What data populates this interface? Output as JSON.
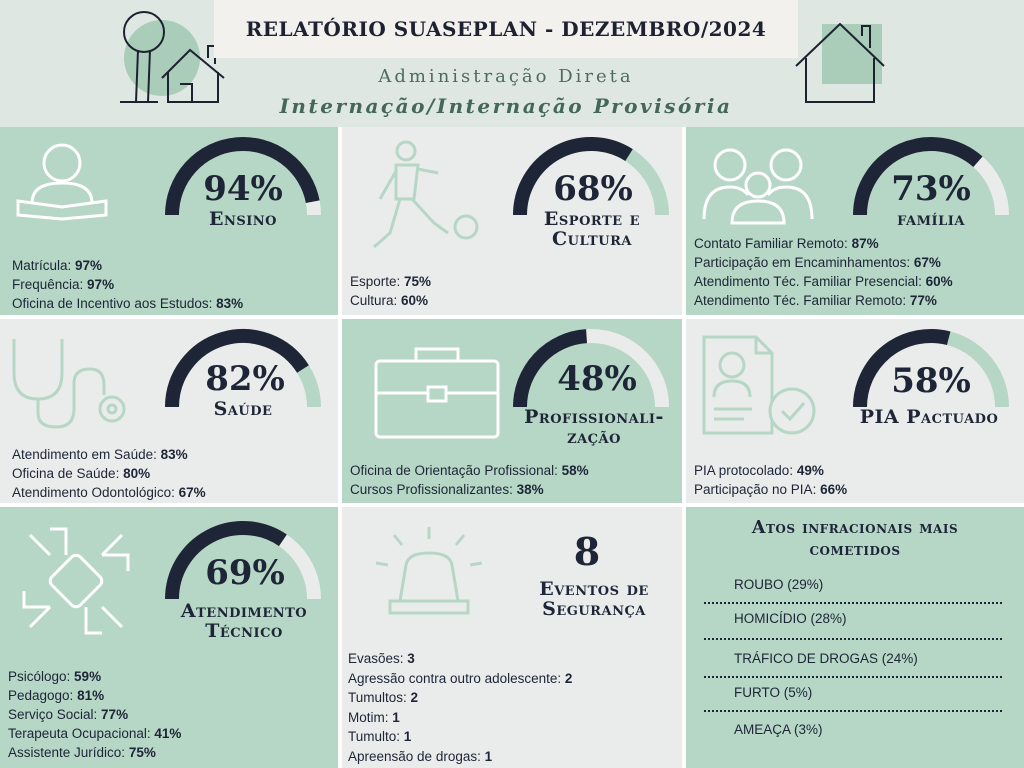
{
  "header": {
    "title": "RELATÓRIO SUASEPLAN - DEZEMBRO/2024",
    "subtitle1": "Administração Direta",
    "subtitle2": "Internação/Internação Provisória"
  },
  "colors": {
    "dark": "#1d2537",
    "green": "#b6d6c6",
    "gray": "#eaeceb",
    "gauge_track": "#b6d6c6"
  },
  "cards": {
    "ensino": {
      "icon": "reading-person-icon",
      "value": 94,
      "value_text": "94%",
      "label": "Ensino",
      "items": [
        {
          "name": "Matrícula: ",
          "value": "97%"
        },
        {
          "name": "Frequência: ",
          "value": "97%"
        },
        {
          "name": "Oficina de Incentivo aos Estudos: ",
          "value": "83%"
        }
      ]
    },
    "esporte": {
      "icon": "soccer-player-icon",
      "value": 68,
      "value_text": "68%",
      "label1": "Esporte e",
      "label2": "Cultura",
      "items": [
        {
          "name": "Esporte: ",
          "value": "75%"
        },
        {
          "name": "Cultura: ",
          "value": "60%"
        }
      ]
    },
    "familia": {
      "icon": "family-icon",
      "value": 73,
      "value_text": "73%",
      "label": "família",
      "items": [
        {
          "name": "Contato Familiar Remoto: ",
          "value": "87%"
        },
        {
          "name": "Participação em Encaminhamentos: ",
          "value": "67%"
        },
        {
          "name": "Atendimento Téc. Familiar Presencial: ",
          "value": "60%"
        },
        {
          "name": "Atendimento Téc. Familiar Remoto: ",
          "value": "77%"
        }
      ]
    },
    "saude": {
      "icon": "stethoscope-icon",
      "value": 82,
      "value_text": "82%",
      "label": "Saúde",
      "items": [
        {
          "name": "Atendimento em Saúde: ",
          "value": "83%"
        },
        {
          "name": "Oficina de Saúde: ",
          "value": "80%"
        },
        {
          "name": "Atendimento Odontológico: ",
          "value": "67%"
        }
      ]
    },
    "profissionalizacao": {
      "icon": "briefcase-icon",
      "value": 48,
      "value_text": "48%",
      "label1": "Profissionali-",
      "label2": "zação",
      "items": [
        {
          "name": "Oficina de Orientação Profissional: ",
          "value": "58%"
        },
        {
          "name": "Cursos Profissionalizantes: ",
          "value": "38%"
        }
      ]
    },
    "pia": {
      "icon": "document-check-icon",
      "value": 58,
      "value_text": "58%",
      "label": "PIA Pactuado",
      "items": [
        {
          "name": "PIA protocolado: ",
          "value": "49%"
        },
        {
          "name": "Participação no PIA: ",
          "value": "66%"
        }
      ]
    },
    "atendimento": {
      "icon": "joined-hands-icon",
      "value": 69,
      "value_text": "69%",
      "label1": "Atendimento",
      "label2": "Técnico",
      "items": [
        {
          "name": "Psicólogo: ",
          "value": "59%"
        },
        {
          "name": "Pedagogo: ",
          "value": "81%"
        },
        {
          "name": "Serviço Social: ",
          "value": "77%"
        },
        {
          "name": "Terapeuta Ocupacional: ",
          "value": "41%"
        },
        {
          "name": "Assistente Jurídico: ",
          "value": "75%"
        }
      ]
    },
    "seguranca": {
      "icon": "siren-icon",
      "count": "8",
      "label1": "Eventos de",
      "label2": "Segurança",
      "items": [
        {
          "name": "Evasões: ",
          "value": "3"
        },
        {
          "name": "Agressão contra outro adolescente: ",
          "value": "2"
        },
        {
          "name": "Tumultos: ",
          "value": "2"
        },
        {
          "name": "Motim: ",
          "value": "1"
        },
        {
          "name": "Tumulto: ",
          "value": "1"
        },
        {
          "name": "Apreensão de drogas: ",
          "value": "1"
        }
      ]
    }
  },
  "atos": {
    "title1": "Atos infracionais mais",
    "title2": "cometidos",
    "items": [
      "ROUBO (29%)",
      "HOMICÍDIO (28%)",
      "TRÁFICO DE DROGAS (24%)",
      "FURTO (5%)",
      "AMEAÇA (3%)"
    ]
  }
}
